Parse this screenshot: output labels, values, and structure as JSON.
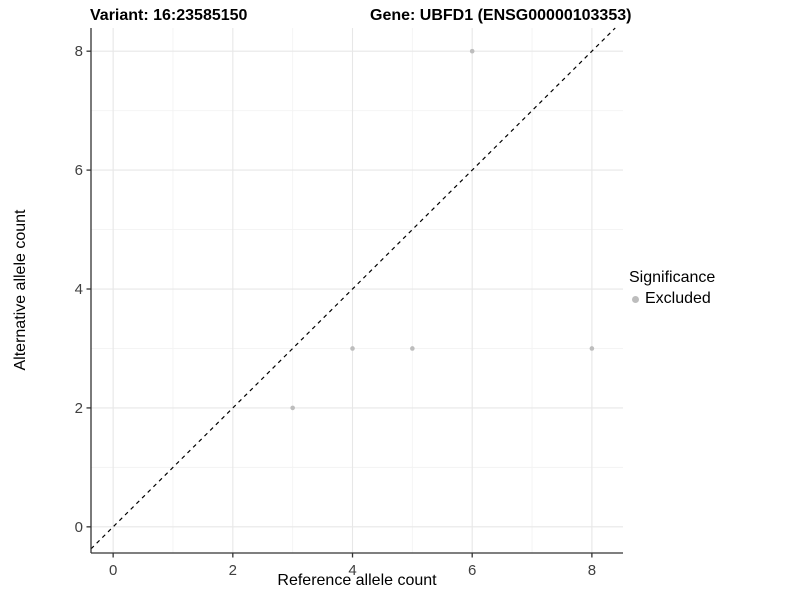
{
  "chart_data": {
    "type": "scatter",
    "title_left": "Variant: 16:23585150",
    "title_right": "Gene: UBFD1 (ENSG00000103353)",
    "xlabel": "Reference allele count",
    "ylabel": "Alternative allele count",
    "x_ticks": [
      0,
      2,
      4,
      6,
      8
    ],
    "y_ticks": [
      0,
      2,
      4,
      6,
      8
    ],
    "x_minor": [
      1,
      3,
      5,
      7
    ],
    "y_minor": [
      1,
      3,
      5,
      7
    ],
    "xlim": [
      -0.37,
      8.52
    ],
    "ylim": [
      -0.44,
      8.39
    ],
    "grid": true,
    "series": [
      {
        "name": "Excluded",
        "color": "#bdbdbd",
        "points": [
          {
            "x": 3,
            "y": 2
          },
          {
            "x": 4,
            "y": 3
          },
          {
            "x": 5,
            "y": 3
          },
          {
            "x": 6,
            "y": 8
          },
          {
            "x": 8,
            "y": 3
          }
        ]
      }
    ],
    "reference_line": {
      "type": "identity",
      "style": "dashed",
      "color": "#000000"
    },
    "legend": {
      "position": "right",
      "title": "Significance",
      "items": [
        {
          "label": "Excluded",
          "color": "#bdbdbd"
        }
      ]
    }
  },
  "colors": {
    "background": "#ffffff",
    "grid_major": "#e7e7e7",
    "grid_minor": "#f3f3f3",
    "axis_line": "#333333",
    "tick_mark": "#333333",
    "tick_label": "#404040",
    "point": "#bdbdbd",
    "ref_line": "#000000"
  }
}
